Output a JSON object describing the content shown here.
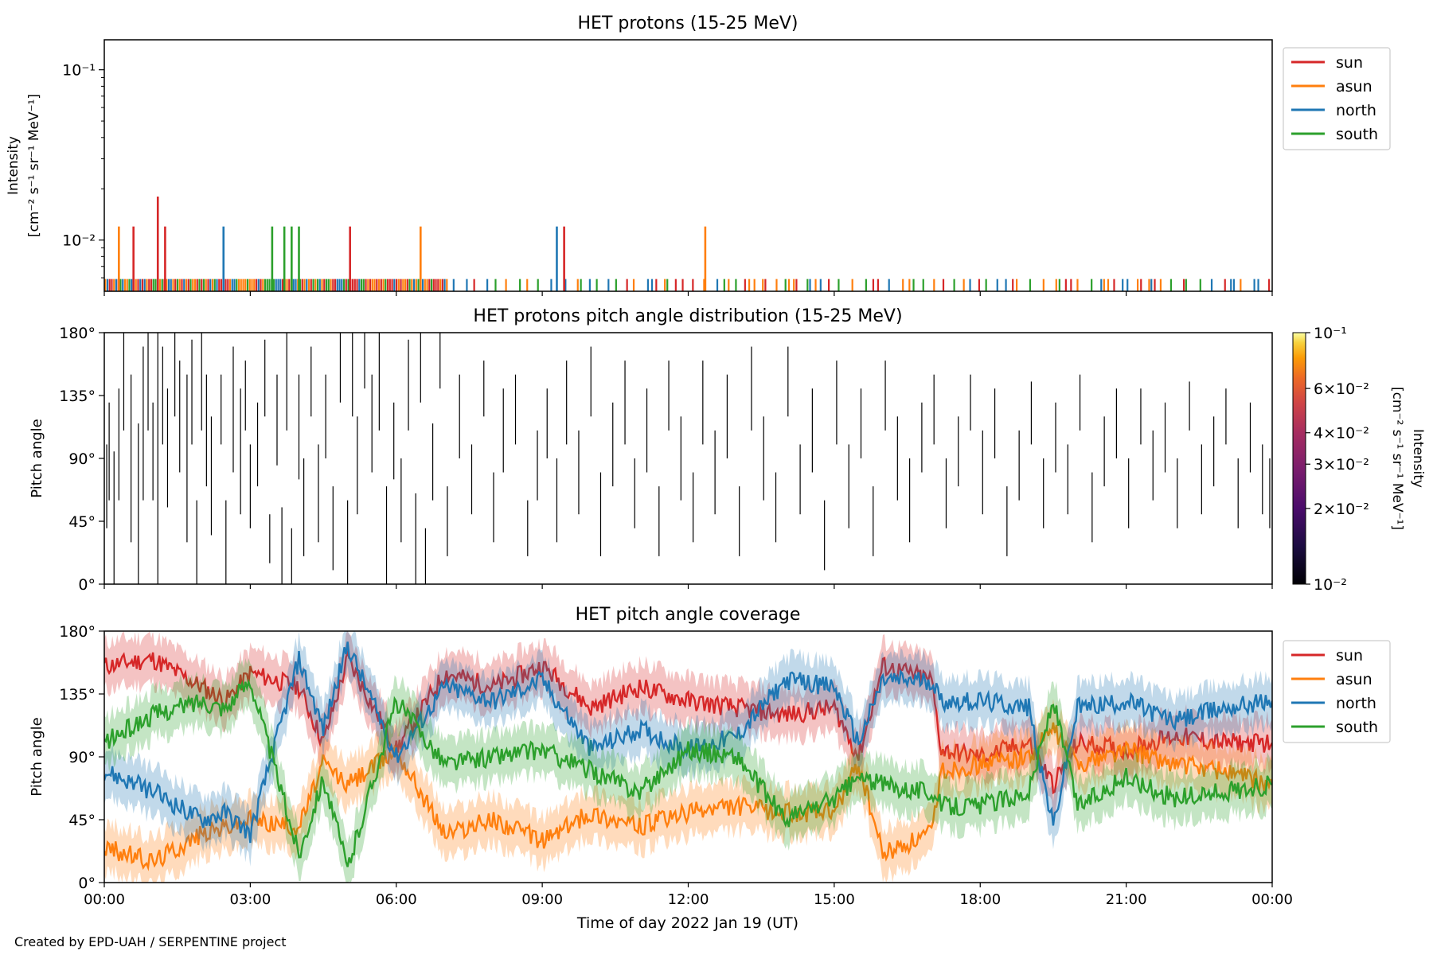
{
  "footer": "Created by EPD-UAH / SERPENTINE project",
  "colors": {
    "sun": "#d62728",
    "asun": "#ff7f0e",
    "north": "#1f77b4",
    "south": "#2ca02c"
  },
  "chart_data": [
    {
      "type": "bar",
      "title": "HET protons (15-25 MeV)",
      "ylabel_lines": [
        "Intensity",
        "[cm⁻² s⁻¹ sr⁻¹ MeV⁻¹]"
      ],
      "yscale": "log",
      "ylim": [
        0.005,
        0.15
      ],
      "ytick_labels": [
        "10⁻²",
        "10⁻¹"
      ],
      "ytick_values": [
        0.01,
        0.1
      ],
      "legend": [
        "sun",
        "asun",
        "north",
        "south"
      ],
      "legend_position": "outside-upper-right",
      "baseline": 0.0059,
      "series": [
        {
          "name": "sun",
          "values": [
            [
              0.6,
              0.012
            ],
            [
              1.1,
              0.018
            ],
            [
              1.25,
              0.012
            ],
            [
              5.05,
              0.012
            ],
            [
              9.45,
              0.012
            ]
          ]
        },
        {
          "name": "asun",
          "values": [
            [
              0.3,
              0.012
            ],
            [
              6.5,
              0.012
            ],
            [
              12.35,
              0.012
            ]
          ]
        },
        {
          "name": "north",
          "values": [
            [
              2.45,
              0.012
            ],
            [
              9.3,
              0.012
            ]
          ]
        },
        {
          "name": "south",
          "values": [
            [
              3.45,
              0.012
            ],
            [
              3.7,
              0.012
            ],
            [
              3.85,
              0.012
            ],
            [
              4.0,
              0.012
            ]
          ]
        }
      ]
    },
    {
      "type": "heatmap",
      "title": "HET protons pitch angle distribution (15-25 MeV)",
      "ylabel": "Pitch angle",
      "ylim": [
        0,
        180
      ],
      "ytick_labels": [
        "0°",
        "45°",
        "90°",
        "135°",
        "180°"
      ],
      "colorbar": {
        "label_lines": [
          "Intensity",
          "[cm⁻² s⁻¹ sr⁻¹ MeV⁻¹]"
        ],
        "scale": "log",
        "range": [
          0.01,
          0.1
        ],
        "tick_labels": [
          "10⁻²",
          "2×10⁻²",
          "3×10⁻²",
          "4×10⁻²",
          "6×10⁻²",
          "10⁻¹"
        ],
        "tick_values": [
          0.01,
          0.02,
          0.03,
          0.04,
          0.06,
          0.1
        ]
      },
      "segments": [
        [
          0.05,
          40,
          100
        ],
        [
          0.1,
          60,
          130
        ],
        [
          0.2,
          0,
          95
        ],
        [
          0.3,
          60,
          140
        ],
        [
          0.4,
          110,
          180
        ],
        [
          0.55,
          30,
          150
        ],
        [
          0.7,
          0,
          115
        ],
        [
          0.8,
          60,
          170
        ],
        [
          0.9,
          110,
          180
        ],
        [
          1.0,
          60,
          130
        ],
        [
          1.1,
          0,
          180
        ],
        [
          1.2,
          100,
          170
        ],
        [
          1.3,
          55,
          140
        ],
        [
          1.45,
          120,
          180
        ],
        [
          1.55,
          80,
          160
        ],
        [
          1.7,
          30,
          150
        ],
        [
          1.8,
          100,
          175
        ],
        [
          1.9,
          0,
          60
        ],
        [
          2.0,
          110,
          180
        ],
        [
          2.1,
          70,
          150
        ],
        [
          2.2,
          35,
          120
        ],
        [
          2.4,
          100,
          150
        ],
        [
          2.5,
          0,
          60
        ],
        [
          2.65,
          80,
          170
        ],
        [
          2.8,
          50,
          140
        ],
        [
          2.9,
          110,
          160
        ],
        [
          3.0,
          40,
          100
        ],
        [
          3.15,
          70,
          130
        ],
        [
          3.3,
          120,
          175
        ],
        [
          3.4,
          15,
          50
        ],
        [
          3.55,
          85,
          150
        ],
        [
          3.65,
          0,
          55
        ],
        [
          3.75,
          110,
          180
        ],
        [
          3.85,
          0,
          40
        ],
        [
          4.0,
          75,
          150
        ],
        [
          4.1,
          20,
          90
        ],
        [
          4.25,
          120,
          170
        ],
        [
          4.4,
          30,
          100
        ],
        [
          4.55,
          90,
          150
        ],
        [
          4.7,
          10,
          70
        ],
        [
          4.85,
          130,
          180
        ],
        [
          5.0,
          0,
          60
        ],
        [
          5.1,
          120,
          180
        ],
        [
          5.2,
          50,
          120
        ],
        [
          5.35,
          140,
          180
        ],
        [
          5.5,
          80,
          150
        ],
        [
          5.65,
          110,
          180
        ],
        [
          5.8,
          0,
          70
        ],
        [
          5.95,
          75,
          130
        ],
        [
          6.1,
          30,
          90
        ],
        [
          6.25,
          110,
          175
        ],
        [
          6.4,
          0,
          65
        ],
        [
          6.5,
          130,
          180
        ],
        [
          6.6,
          0,
          40
        ],
        [
          6.75,
          60,
          115
        ],
        [
          6.9,
          140,
          180
        ],
        [
          7.05,
          20,
          70
        ],
        [
          7.3,
          90,
          150
        ],
        [
          7.55,
          50,
          100
        ],
        [
          7.8,
          120,
          160
        ],
        [
          8.0,
          30,
          80
        ],
        [
          8.2,
          80,
          140
        ],
        [
          8.45,
          100,
          150
        ],
        [
          8.7,
          20,
          60
        ],
        [
          8.9,
          60,
          110
        ],
        [
          9.1,
          90,
          140
        ],
        [
          9.3,
          30,
          90
        ],
        [
          9.5,
          100,
          160
        ],
        [
          9.75,
          50,
          110
        ],
        [
          10.0,
          120,
          170
        ],
        [
          10.2,
          20,
          80
        ],
        [
          10.45,
          70,
          130
        ],
        [
          10.7,
          100,
          160
        ],
        [
          10.9,
          40,
          90
        ],
        [
          11.15,
          80,
          140
        ],
        [
          11.4,
          20,
          70
        ],
        [
          11.6,
          110,
          160
        ],
        [
          11.85,
          60,
          120
        ],
        [
          12.1,
          30,
          80
        ],
        [
          12.3,
          100,
          160
        ],
        [
          12.55,
          50,
          110
        ],
        [
          12.8,
          90,
          150
        ],
        [
          13.05,
          20,
          70
        ],
        [
          13.3,
          110,
          170
        ],
        [
          13.55,
          60,
          120
        ],
        [
          13.8,
          30,
          80
        ],
        [
          14.05,
          120,
          170
        ],
        [
          14.3,
          50,
          100
        ],
        [
          14.55,
          80,
          140
        ],
        [
          14.8,
          10,
          60
        ],
        [
          15.05,
          100,
          160
        ],
        [
          15.3,
          40,
          100
        ],
        [
          15.55,
          90,
          140
        ],
        [
          15.8,
          20,
          70
        ],
        [
          16.05,
          110,
          160
        ],
        [
          16.3,
          60,
          120
        ],
        [
          16.55,
          30,
          90
        ],
        [
          16.8,
          80,
          130
        ],
        [
          17.05,
          100,
          150
        ],
        [
          17.3,
          40,
          90
        ],
        [
          17.55,
          70,
          120
        ],
        [
          17.8,
          110,
          150
        ],
        [
          18.05,
          50,
          110
        ],
        [
          18.3,
          90,
          140
        ],
        [
          18.55,
          20,
          70
        ],
        [
          18.8,
          60,
          110
        ],
        [
          19.05,
          100,
          145
        ],
        [
          19.3,
          40,
          90
        ],
        [
          19.55,
          80,
          130
        ],
        [
          19.8,
          50,
          100
        ],
        [
          20.05,
          110,
          150
        ],
        [
          20.3,
          30,
          80
        ],
        [
          20.55,
          70,
          120
        ],
        [
          20.8,
          90,
          140
        ],
        [
          21.05,
          40,
          90
        ],
        [
          21.3,
          100,
          140
        ],
        [
          21.55,
          60,
          110
        ],
        [
          21.8,
          80,
          130
        ],
        [
          22.05,
          40,
          90
        ],
        [
          22.3,
          110,
          145
        ],
        [
          22.55,
          50,
          100
        ],
        [
          22.8,
          70,
          120
        ],
        [
          23.05,
          100,
          140
        ],
        [
          23.3,
          40,
          90
        ],
        [
          23.55,
          80,
          130
        ],
        [
          23.8,
          50,
          100
        ],
        [
          23.95,
          40,
          90
        ]
      ]
    },
    {
      "type": "line",
      "title": "HET pitch angle coverage",
      "ylabel": "Pitch angle",
      "xlabel": "Time of day 2022 Jan 19 (UT)",
      "ylim": [
        0,
        180
      ],
      "ytick_labels": [
        "0°",
        "45°",
        "90°",
        "135°",
        "180°"
      ],
      "legend": [
        "sun",
        "asun",
        "north",
        "south"
      ],
      "legend_position": "outside-upper-right",
      "band_halfwidth_deg": 17,
      "series": [
        {
          "name": "sun",
          "x": [
            0,
            1,
            2,
            2.5,
            3,
            4,
            4.5,
            5,
            6,
            7,
            8,
            9,
            10,
            11,
            12,
            13,
            14,
            15,
            15.5,
            16,
            17,
            17.2,
            18,
            19,
            19.5,
            20,
            21,
            22,
            23,
            24
          ],
          "values": [
            155,
            160,
            140,
            130,
            150,
            140,
            100,
            160,
            95,
            150,
            140,
            155,
            125,
            140,
            130,
            125,
            120,
            125,
            90,
            155,
            145,
            95,
            90,
            100,
            70,
            100,
            95,
            105,
            100,
            100
          ]
        },
        {
          "name": "asun",
          "x": [
            0,
            1,
            2,
            2.5,
            3,
            4,
            4.5,
            5,
            6,
            7,
            8,
            9,
            10,
            11,
            12,
            13,
            14,
            15,
            15.5,
            16,
            17,
            17.2,
            18,
            19,
            19.5,
            20,
            21,
            22,
            23,
            24
          ],
          "values": [
            25,
            15,
            35,
            40,
            45,
            40,
            85,
            70,
            95,
            35,
            45,
            30,
            50,
            40,
            50,
            55,
            50,
            50,
            85,
            20,
            35,
            80,
            85,
            90,
            110,
            85,
            95,
            85,
            80,
            70
          ]
        },
        {
          "name": "north",
          "x": [
            0,
            1,
            2,
            2.5,
            3,
            4,
            4.5,
            5,
            6,
            7,
            8,
            9,
            10,
            11,
            12,
            13,
            14,
            15,
            15.5,
            16,
            17,
            17.2,
            18,
            19,
            19.5,
            20,
            21,
            22,
            23,
            24
          ],
          "values": [
            80,
            65,
            45,
            50,
            35,
            160,
            110,
            170,
            90,
            140,
            130,
            145,
            95,
            110,
            95,
            105,
            145,
            140,
            100,
            145,
            145,
            130,
            130,
            125,
            40,
            125,
            130,
            115,
            125,
            130
          ]
        },
        {
          "name": "south",
          "x": [
            0,
            1,
            2,
            2.5,
            3,
            4,
            4.5,
            5,
            6,
            7,
            8,
            9,
            10,
            11,
            12,
            13,
            14,
            15,
            15.5,
            16,
            17,
            17.2,
            18,
            19,
            19.5,
            20,
            21,
            22,
            23,
            24
          ],
          "values": [
            100,
            120,
            130,
            125,
            145,
            20,
            75,
            10,
            130,
            85,
            90,
            95,
            80,
            65,
            95,
            90,
            45,
            60,
            75,
            70,
            65,
            55,
            55,
            65,
            130,
            55,
            75,
            60,
            65,
            70
          ]
        }
      ]
    }
  ],
  "x_axis": {
    "range_hours": [
      0,
      24
    ],
    "tick_labels": [
      "00:00",
      "03:00",
      "06:00",
      "09:00",
      "12:00",
      "15:00",
      "18:00",
      "21:00",
      "00:00"
    ],
    "tick_values": [
      0,
      3,
      6,
      9,
      12,
      15,
      18,
      21,
      24
    ]
  }
}
